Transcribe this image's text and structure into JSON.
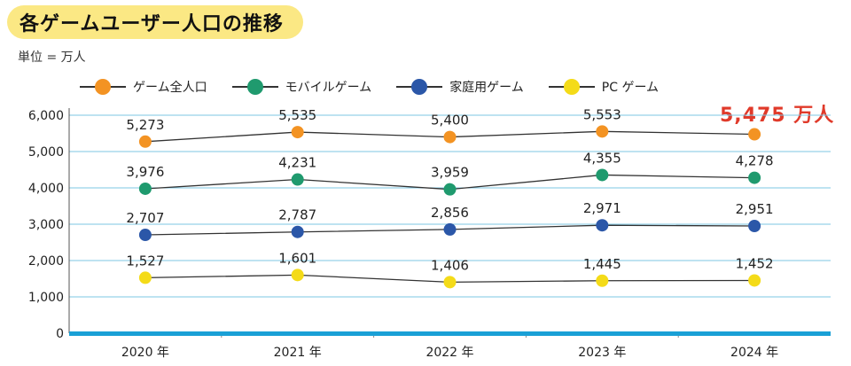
{
  "title": "各ゲームユーザー人口の推移",
  "unit_label": "単位 = 万人",
  "highlight": "5,475 万人",
  "colors": {
    "title_bg": "#fbe884",
    "highlight": "#e03a2a",
    "axis": "#1aa0d6",
    "grid": "#7cc7e3"
  },
  "chart_data": {
    "type": "line",
    "categories": [
      "2020 年",
      "2021 年",
      "2022 年",
      "2023 年",
      "2024 年"
    ],
    "y_ticks": [
      "0",
      "1,000",
      "2,000",
      "3,000",
      "4,000",
      "5,000",
      "6,000"
    ],
    "ylim": [
      0,
      6000
    ],
    "grid": true,
    "legend_position": "top-left",
    "series": [
      {
        "name": "ゲーム全人口",
        "color": "#f39323",
        "values": [
          5273,
          5535,
          5400,
          5553,
          5475
        ],
        "labels": [
          "5,273",
          "5,535",
          "5,400",
          "5,553",
          ""
        ]
      },
      {
        "name": "モバイルゲーム",
        "color": "#1f9a6e",
        "values": [
          3976,
          4231,
          3959,
          4355,
          4278
        ],
        "labels": [
          "3,976",
          "4,231",
          "3,959",
          "4,355",
          "4,278"
        ]
      },
      {
        "name": "家庭用ゲーム",
        "color": "#2b57a8",
        "values": [
          2707,
          2787,
          2856,
          2971,
          2951
        ],
        "labels": [
          "2,707",
          "2,787",
          "2,856",
          "2,971",
          "2,951"
        ]
      },
      {
        "name": "PC ゲーム",
        "color": "#f4db18",
        "values": [
          1527,
          1601,
          1406,
          1445,
          1452
        ],
        "labels": [
          "1,527",
          "1,601",
          "1,406",
          "1,445",
          "1,452"
        ]
      }
    ]
  }
}
